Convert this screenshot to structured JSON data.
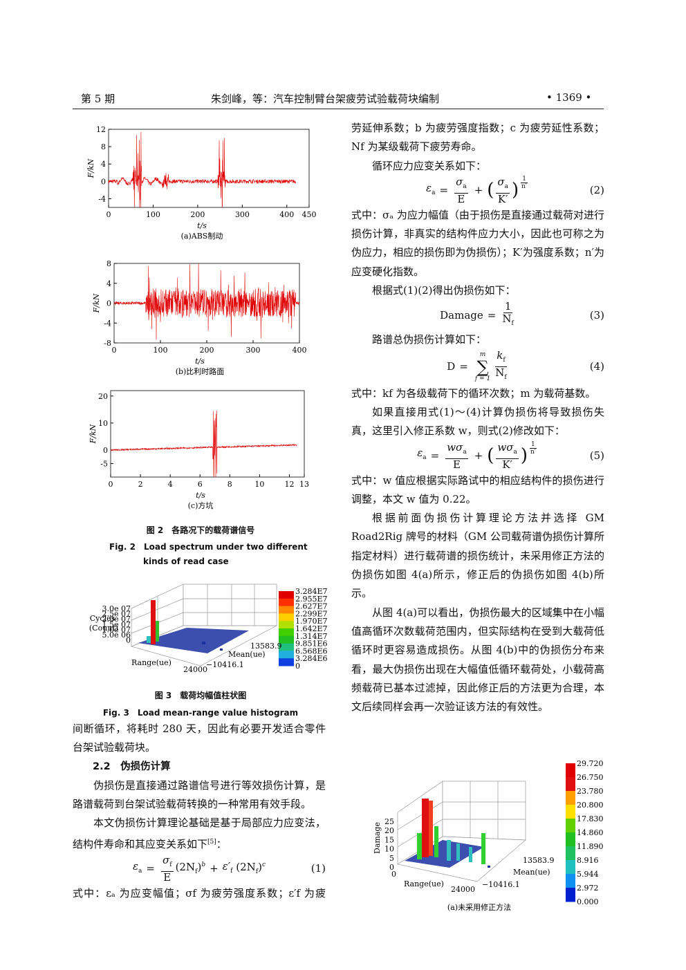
{
  "header": {
    "issue": "第 5 期",
    "title": "朱剑峰，等：汽车控制臂台架疲劳试验载荷块编制",
    "page": "• 1369 •"
  },
  "figure2": {
    "panels": [
      {
        "caption": "(a)ABS制动",
        "xlabel": "t/s",
        "ylabel": "F/kN",
        "xlim": [
          0,
          450
        ],
        "ylim": [
          -6,
          12
        ],
        "xticks": [
          0,
          100,
          200,
          300,
          400,
          450
        ],
        "yticks": [
          -4,
          0,
          4,
          8,
          12
        ]
      },
      {
        "caption": "(b)比利时路面",
        "xlabel": "t/s",
        "ylabel": "F/kN",
        "xlim": [
          0,
          400
        ],
        "ylim": [
          -8,
          8
        ],
        "xticks": [
          0,
          100,
          200,
          300,
          400
        ],
        "yticks": [
          -8,
          -4,
          0,
          4,
          8
        ]
      },
      {
        "caption": "(c)方坑",
        "xlabel": "t/s",
        "ylabel": "F/kN",
        "xlim": [
          0,
          13
        ],
        "ylim": [
          -10,
          22
        ],
        "xticks": [
          0,
          2,
          4,
          6,
          8,
          10,
          12,
          13
        ],
        "yticks": [
          -5,
          0,
          10,
          20
        ]
      }
    ],
    "caption_cn": "图 2　各路况下的载荷谱信号",
    "caption_en": [
      "Fig. 2　Load spectrum under two different",
      "kinds of read case"
    ]
  },
  "figure3": {
    "zlabel": [
      "Cycles",
      "(Count)"
    ],
    "zticks": [
      "3.0e 07",
      "2.5e 07",
      "2.0e 07",
      "1.5e 07",
      "1.0e 07",
      "5.0e 06",
      "0"
    ],
    "range_label": "Range(ue)",
    "mean_label": "Mean(ue)",
    "range_tick": "24000",
    "mean_ticks": [
      "−10416.1",
      "13583.9"
    ],
    "colorbar": [
      "3.284E7",
      "2.955E7",
      "2.627E7",
      "2.299E7",
      "1.970E7",
      "1.642E7",
      "1.314E7",
      "9.851E6",
      "6.568E6",
      "3.284E6",
      "0"
    ],
    "caption_cn": "图 3　载荷均幅值柱状图",
    "caption_en": "Fig. 3　Load mean-range value histogram"
  },
  "left": {
    "p1": "间断循环，将耗时 280 天，因此有必要开发适合零件台架试验载荷块。",
    "section": "2.2　伪损伤计算",
    "p2": "伪损伤是直接通过路谱信号进行等效损伤计算，是路谱载荷到台架试验载荷转换的一种常用有效手段。",
    "p3": {
      "text": "本文伪损伤计算理论基础是基于局部应力应变法，结构件寿命和其应变关系如下",
      "ref": "[5]",
      "end": "："
    },
    "eq1": {
      "lhs": "ε",
      "lhs_sub": "a",
      "eq": "=",
      "num": "σ",
      "num_sub": "f",
      "den": "E",
      "t1": "(2N",
      "t1_sub": "f",
      "t1_close": ")",
      "t1_sup": "b",
      "plus": "+",
      "t2": "ε′",
      "t2_sub": "f",
      "t3": "(2N",
      "t3_sub": "f",
      "t3_close": ")",
      "t3_sup": "c",
      "number": "(1)"
    },
    "p4": "式中：εₐ 为应变幅值；σf 为疲劳强度系数；ε′f 为疲"
  },
  "right": {
    "p1": "劳延伸系数；b 为疲劳强度指数；c 为疲劳延性系数；Nf 为某级载荷下疲劳寿命。",
    "p2": "循环应力应变关系如下：",
    "eq2": {
      "lhs": "ε",
      "lhs_sub": "a",
      "eq": "=",
      "n1": "σ",
      "n1_sub": "a",
      "d1": "E",
      "plus": "+",
      "lp": "(",
      "n2": "σ",
      "n2_sub": "a",
      "d2": "K′",
      "rp": ")",
      "exp_num": "1",
      "exp_den": "n′",
      "number": "(2)"
    },
    "p3": "式中：σₐ 为应力幅值（由于损伤是直接通过载荷对进行损伤计算，非真实的结构件应力大小，因此也可称之为伪应力，相应的损伤即为伪损伤）；K′为强度系数；n′为应变硬化指数。",
    "p4": "根据式(1)(2)得出伪损伤如下：",
    "eq3": {
      "lhs": "Damage",
      "eq": "=",
      "num": "1",
      "den": "N",
      "den_sub": "f",
      "number": "(3)"
    },
    "p5": "路谱总伪损伤计算如下：",
    "eq4": {
      "lhs": "D",
      "eq": "=",
      "sum": "∑",
      "sum_top": "m",
      "sum_bottom": "f = 1",
      "num": "k",
      "num_sub": "f",
      "den": "N",
      "den_sub": "f",
      "number": "(4)"
    },
    "p6": "式中：kf 为各级载荷下的循环次数；m 为载荷基数。",
    "p7": "如果直接用式(1)～(4)计算伪损伤将导致损伤失真，这里引入修正系数 w，则式(2)修改如下：",
    "eq5": {
      "lhs": "ε",
      "lhs_sub": "a",
      "eq": "=",
      "n1": "wσ",
      "n1_sub": "a",
      "d1": "E",
      "plus": "+",
      "lp": "(",
      "n2": "wσ",
      "n2_sub": "a",
      "d2": "K′",
      "rp": ")",
      "exp_num": "1",
      "exp_den": "n′",
      "number": "(5)"
    },
    "p8": "式中：w 值应根据实际路试中的相应结构件的损伤进行调整，本文 w 值为 0.22。",
    "p9": "根据前面伪损伤计算理论方法并选择 GM Road2Rig 牌号的材料（GM 公司载荷谱伪损伤计算所指定材料）进行载荷谱的损伤统计，未采用修正方法的伪损伤如图 4(a)所示，修正后的伪损伤如图 4(b)所示。",
    "p10": "从图 4(a)可以看出，伪损伤最大的区域集中在小幅值高循环次数载荷范围内，但实际结构在受到大载荷低循环时更容易造成损伤。从图 4(b)中的伪损伤分布来看，最大伪损伤出现在大幅值低循环载荷处，小载荷高频载荷已基本过滤掉，因此修正后的方法更为合理，本文后续同样会再一次验证该方法的有效性。"
  },
  "figure4": {
    "zlabel": "Damage",
    "zticks": [
      "25",
      "20",
      "15",
      "10",
      "5",
      "0"
    ],
    "range_zero": "0",
    "range_label": "Range(ue)",
    "mean_label": "Mean(ue)",
    "range_tick": "24000",
    "mean_ticks": [
      "−10416.1",
      "13583.9"
    ],
    "colorbar": [
      "29.720",
      "26.750",
      "23.780",
      "20.800",
      "17.830",
      "14.860",
      "11.890",
      "8.916",
      "5.944",
      "2.972",
      "0.000"
    ],
    "caption": "(a)未采用修正方法"
  }
}
